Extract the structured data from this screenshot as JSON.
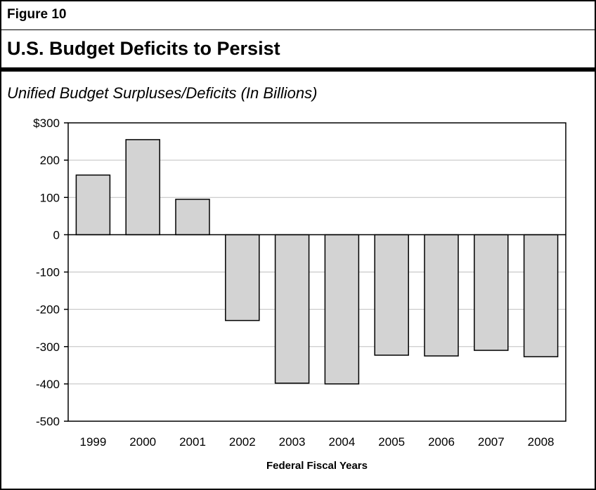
{
  "figure": {
    "label": "Figure 10",
    "title": "U.S. Budget Deficits to Persist",
    "subtitle": "Unified Budget Surpluses/Deficits (In Billions)"
  },
  "colors": {
    "bar_fill": "#d3d3d3",
    "bar_stroke": "#000000",
    "grid": "#bfbfbf",
    "frame": "#000000"
  },
  "chart_data": {
    "type": "bar",
    "categories": [
      "1999",
      "2000",
      "2001",
      "2002",
      "2003",
      "2004",
      "2005",
      "2006",
      "2007",
      "2008"
    ],
    "values": [
      160,
      255,
      95,
      -230,
      -398,
      -400,
      -323,
      -325,
      -310,
      -327
    ],
    "xlabel": "Federal Fiscal Years",
    "ylabel": "",
    "ylim": [
      -500,
      300
    ],
    "yticks": [
      300,
      200,
      100,
      0,
      -100,
      -200,
      -300,
      -400,
      -500
    ],
    "ytick_labels": [
      "$300",
      "200",
      "100",
      "0",
      "-100",
      "-200",
      "-300",
      "-400",
      "-500"
    ],
    "grid": true
  }
}
